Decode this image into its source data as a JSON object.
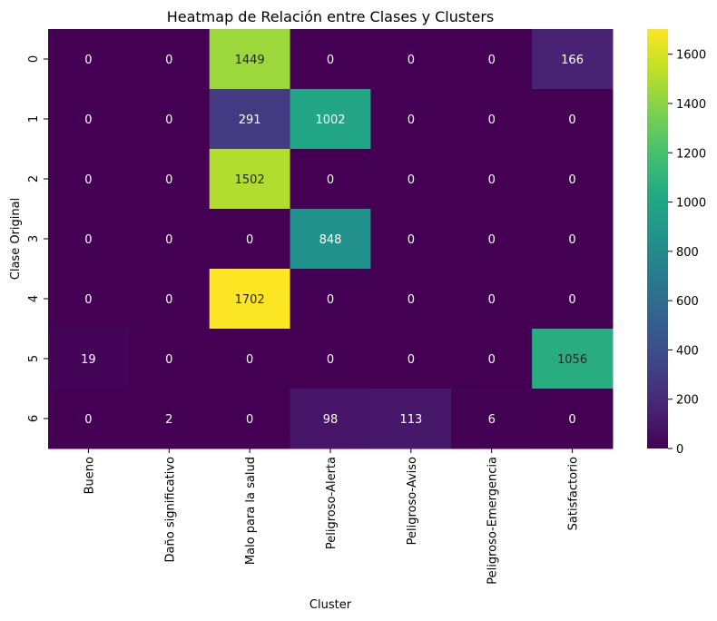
{
  "chart_data": {
    "type": "heatmap",
    "title": "Heatmap de Relación entre Clases y Clusters",
    "xlabel": "Cluster",
    "ylabel": "Clase Original",
    "x_categories": [
      "Bueno",
      "Daño significativo",
      "Malo para la salud",
      "Peligroso-Alerta",
      "Peligroso-Aviso",
      "Peligroso-Emergencia",
      "Satisfactorio"
    ],
    "y_categories": [
      "0",
      "1",
      "2",
      "3",
      "4",
      "5",
      "6"
    ],
    "values": [
      [
        0,
        0,
        1449,
        0,
        0,
        0,
        166
      ],
      [
        0,
        0,
        291,
        1002,
        0,
        0,
        0
      ],
      [
        0,
        0,
        1502,
        0,
        0,
        0,
        0
      ],
      [
        0,
        0,
        0,
        848,
        0,
        0,
        0
      ],
      [
        0,
        0,
        1702,
        0,
        0,
        0,
        0
      ],
      [
        19,
        0,
        0,
        0,
        0,
        0,
        1056
      ],
      [
        0,
        2,
        0,
        98,
        113,
        6,
        0
      ]
    ],
    "colormap": "viridis",
    "vmin": 0,
    "vmax": 1702,
    "colorbar_ticks": [
      0,
      200,
      400,
      600,
      800,
      1000,
      1200,
      1400,
      1600
    ],
    "colorbar_tick_labels": [
      "0",
      "200",
      "400",
      "600",
      "800",
      "1000",
      "1200",
      "1400",
      "1600"
    ],
    "annotate": true,
    "grid": false
  }
}
